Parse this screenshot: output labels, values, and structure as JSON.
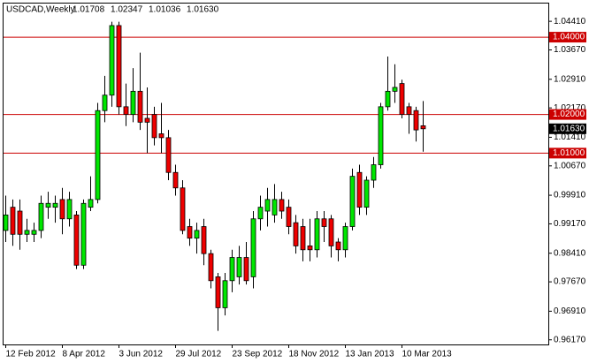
{
  "chart_data": {
    "type": "candlestick",
    "title": "USDCAD,Weekly",
    "ohlc_text": [
      "1.01708",
      "1.02347",
      "1.01036",
      "1.01630"
    ],
    "categories": [
      "12 Feb 2012",
      null,
      null,
      null,
      null,
      null,
      null,
      null,
      "8 Apr 2012",
      null,
      null,
      null,
      null,
      null,
      null,
      null,
      "3 Jun 2012",
      null,
      null,
      null,
      null,
      null,
      null,
      null,
      "29 Jul 2012",
      null,
      null,
      null,
      null,
      null,
      null,
      null,
      "23 Sep 2012",
      null,
      null,
      null,
      null,
      null,
      null,
      null,
      "18 Nov 2012",
      null,
      null,
      null,
      null,
      null,
      null,
      null,
      "13 Jan 2013",
      null,
      null,
      null,
      null,
      null,
      null,
      null,
      "10 Mar 2013",
      null,
      null,
      null
    ],
    "open": [
      0.99,
      0.996,
      0.995,
      0.989,
      0.989,
      0.99,
      0.996,
      0.996,
      0.998,
      0.993,
      0.994,
      0.981,
      0.996,
      0.998,
      1.021,
      1.025,
      1.043,
      1.022,
      1.02,
      1.026,
      1.019,
      1.02,
      1.015,
      1.014,
      1.005,
      1.001,
      0.991,
      0.988,
      0.991,
      0.984,
      0.978,
      0.97,
      0.977,
      0.978,
      0.983,
      0.978,
      0.993,
      0.995,
      0.994,
      0.998,
      0.996,
      0.992,
      0.991,
      0.986,
      0.985,
      0.993,
      0.993,
      0.987,
      0.985,
      0.991,
      1.005,
      0.996,
      1.003,
      1.007,
      1.022,
      1.026,
      1.028,
      1.022,
      1.021,
      1.01708
    ],
    "high": [
      0.999,
      0.998,
      0.998,
      0.993,
      0.992,
      0.999,
      1.0,
      0.999,
      1.001,
      1.0,
      0.995,
      0.998,
      1.004,
      1.023,
      1.03,
      1.044,
      1.044,
      1.028,
      1.032,
      1.036,
      1.027,
      1.022,
      1.023,
      1.016,
      1.007,
      1.003,
      0.993,
      0.992,
      0.993,
      0.985,
      0.979,
      0.979,
      0.985,
      0.986,
      0.987,
      0.995,
      0.999,
      1.001,
      1.002,
      1.0,
      0.998,
      0.994,
      0.993,
      0.993,
      0.995,
      0.995,
      0.994,
      0.988,
      0.992,
      1.006,
      1.007,
      1.004,
      1.009,
      1.023,
      1.035,
      1.033,
      1.029,
      1.023,
      1.022,
      1.02347
    ],
    "low": [
      0.987,
      0.986,
      0.985,
      0.987,
      0.987,
      0.988,
      0.993,
      0.992,
      0.989,
      0.991,
      0.98,
      0.98,
      0.995,
      0.997,
      1.018,
      1.022,
      1.02,
      1.017,
      1.018,
      1.016,
      1.01,
      1.012,
      1.01,
      1.003,
      0.999,
      0.989,
      0.986,
      0.984,
      0.981,
      0.975,
      0.964,
      0.968,
      0.974,
      0.976,
      0.976,
      0.975,
      0.99,
      0.991,
      0.992,
      0.993,
      0.989,
      0.984,
      0.982,
      0.982,
      0.983,
      0.987,
      0.983,
      0.982,
      0.983,
      0.99,
      0.994,
      0.994,
      1.001,
      1.006,
      1.021,
      1.023,
      1.019,
      1.015,
      1.013,
      1.01036
    ],
    "close": [
      0.994,
      0.989,
      0.989,
      0.99,
      0.99,
      0.997,
      0.997,
      0.997,
      0.993,
      0.998,
      0.981,
      0.997,
      0.998,
      1.021,
      1.025,
      1.043,
      1.022,
      1.02,
      1.026,
      1.018,
      1.018,
      1.014,
      1.014,
      1.005,
      1.001,
      0.99,
      0.988,
      0.99,
      0.984,
      0.977,
      0.97,
      0.977,
      0.983,
      0.983,
      0.977,
      0.993,
      0.996,
      0.998,
      0.998,
      0.995,
      0.991,
      0.986,
      0.985,
      0.985,
      0.993,
      0.991,
      0.986,
      0.985,
      0.991,
      1.004,
      0.996,
      1.003,
      1.007,
      1.022,
      1.026,
      1.027,
      1.02,
      1.02,
      1.016,
      1.0163
    ],
    "up_color": "#00e600",
    "down_color": "#ee0000",
    "ylim": [
      0.9605,
      1.0487
    ],
    "yticks": [
      {
        "value": 1.0441,
        "label": "1.04410"
      },
      {
        "value": 1.0367,
        "label": "1.03670"
      },
      {
        "value": 1.0291,
        "label": "1.02910"
      },
      {
        "value": 1.0217,
        "label": "1.02170"
      },
      {
        "value": 1.0141,
        "label": "1.01410"
      },
      {
        "value": 1.0067,
        "label": "1.00670"
      },
      {
        "value": 0.9991,
        "label": "0.99910"
      },
      {
        "value": 0.9917,
        "label": "0.99170"
      },
      {
        "value": 0.9841,
        "label": "0.98410"
      },
      {
        "value": 0.9767,
        "label": "0.97670"
      },
      {
        "value": 0.9691,
        "label": "0.96910"
      },
      {
        "value": 0.9617,
        "label": "0.96170"
      }
    ],
    "hlines": [
      {
        "value": 1.04,
        "label": "1.04000"
      },
      {
        "value": 1.02,
        "label": "1.02000"
      },
      {
        "value": 1.01,
        "label": "1.01000"
      }
    ],
    "hline_color": "#cc0000",
    "price": {
      "value": 1.0163,
      "label": "1.01630"
    }
  }
}
